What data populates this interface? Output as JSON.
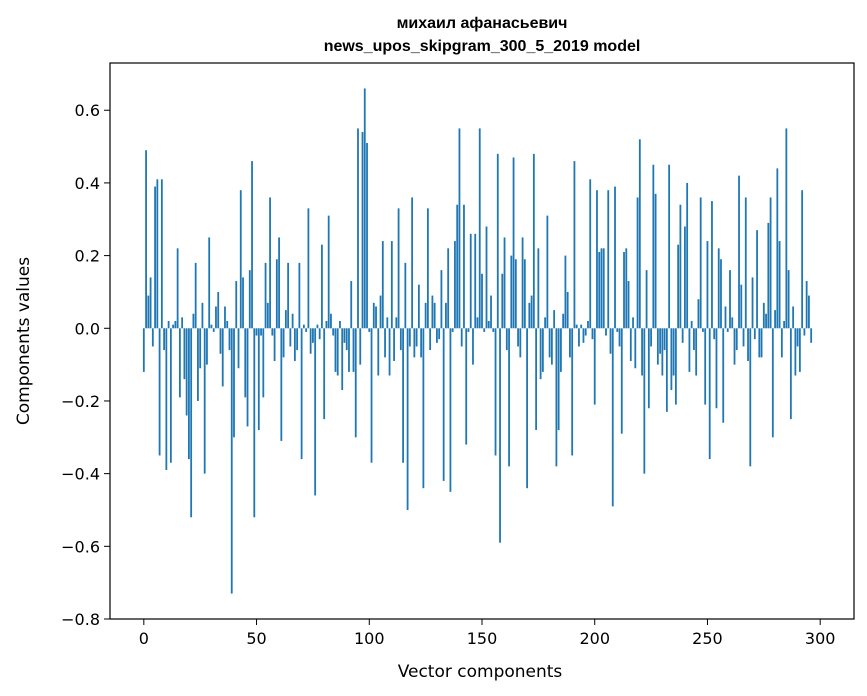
{
  "chart_data": {
    "type": "bar",
    "title": "михаил афанасьевич",
    "subtitle": "news_upos_skipgram_300_5_2019 model",
    "xlabel": "Vector components",
    "ylabel": "Components values",
    "xlim": [
      -15,
      315
    ],
    "ylim": [
      -0.8,
      0.73
    ],
    "xticks": [
      0,
      50,
      100,
      150,
      200,
      250,
      300
    ],
    "yticks": [
      -0.8,
      -0.6,
      -0.4,
      -0.2,
      0.0,
      0.2,
      0.4,
      0.6
    ],
    "ytick_labels": [
      "−0.8",
      "−0.6",
      "−0.4",
      "−0.2",
      "0.0",
      "0.2",
      "0.4",
      "0.6"
    ],
    "bar_color": "#1f77b4",
    "grid": false,
    "values": [
      -0.12,
      0.49,
      0.09,
      0.14,
      -0.05,
      0.39,
      0.41,
      -0.35,
      0.41,
      -0.06,
      -0.39,
      0.02,
      -0.37,
      0.01,
      0.02,
      0.22,
      -0.19,
      0.03,
      -0.14,
      -0.24,
      -0.36,
      -0.52,
      0.04,
      0.18,
      -0.2,
      -0.11,
      0.07,
      -0.4,
      -0.1,
      0.25,
      0.01,
      -0.01,
      0.06,
      0.1,
      -0.07,
      -0.16,
      0.06,
      0.02,
      -0.06,
      -0.73,
      -0.3,
      0.13,
      -0.11,
      0.38,
      0.14,
      -0.19,
      -0.27,
      0.16,
      0.46,
      -0.52,
      -0.02,
      -0.28,
      -0.02,
      -0.19,
      0.18,
      0.07,
      0.36,
      -0.02,
      -0.09,
      0.19,
      0.25,
      -0.31,
      -0.08,
      0.05,
      0.18,
      -0.05,
      0.04,
      -0.09,
      -0.06,
      0.18,
      -0.36,
      0.01,
      -0.01,
      0.33,
      -0.07,
      -0.04,
      -0.46,
      0.01,
      -0.03,
      0.23,
      -0.25,
      0.02,
      0.31,
      0.04,
      -0.02,
      -0.12,
      -0.13,
      0.02,
      -0.17,
      -0.04,
      -0.06,
      -0.12,
      0.13,
      -0.12,
      -0.3,
      0.55,
      -0.1,
      0.54,
      0.66,
      0.51,
      -0.01,
      -0.37,
      0.07,
      0.06,
      -0.13,
      0.09,
      0.24,
      -0.08,
      0.03,
      -0.13,
      0.24,
      -0.09,
      0.03,
      0.33,
      -0.06,
      -0.37,
      0.18,
      -0.5,
      -0.05,
      0.36,
      -0.08,
      -0.05,
      0.12,
      -0.08,
      -0.44,
      0.07,
      0.33,
      -0.06,
      0.09,
      0.07,
      -0.04,
      -0.03,
      0.16,
      -0.42,
      0.07,
      0.22,
      -0.45,
      -0.01,
      0.24,
      0.34,
      0.55,
      -0.05,
      0.34,
      -0.32,
      -0.01,
      0.26,
      -0.1,
      0.26,
      0.03,
      0.55,
      0.15,
      -0.01,
      0.28,
      0.02,
      0.09,
      -0.01,
      -0.35,
      0.48,
      -0.59,
      0.15,
      0.25,
      -0.06,
      -0.38,
      0.2,
      0.47,
      0.19,
      -0.05,
      -0.08,
      0.25,
      0.19,
      -0.44,
      0.07,
      0.09,
      0.48,
      -0.28,
      0.22,
      -0.14,
      -0.12,
      0.03,
      0.31,
      -0.08,
      -0.1,
      0.05,
      -0.38,
      -0.28,
      -0.12,
      0.04,
      0.2,
      0.1,
      -0.08,
      -0.35,
      0.46,
      0.01,
      -0.05,
      0.01,
      -0.04,
      -0.02,
      0.02,
      0.41,
      -0.03,
      -0.21,
      0.38,
      0.21,
      0.22,
      0.22,
      -0.02,
      0.38,
      -0.07,
      -0.49,
      0.39,
      -0.01,
      -0.05,
      -0.29,
      0.21,
      0.22,
      0.13,
      -0.09,
      0.03,
      -0.11,
      0.36,
      0.52,
      -0.13,
      -0.4,
      0.16,
      -0.22,
      -0.05,
      0.45,
      0.37,
      -0.1,
      -0.07,
      -0.13,
      -0.06,
      -0.23,
      0.45,
      -0.17,
      -0.13,
      -0.21,
      0.23,
      0.34,
      -0.04,
      0.28,
      0.4,
      -0.12,
      0.02,
      -0.06,
      -0.13,
      0.08,
      0.36,
      -0.01,
      -0.21,
      0.24,
      -0.36,
      0.35,
      -0.03,
      -0.22,
      0.22,
      0.19,
      -0.26,
      0.06,
      -0.01,
      0.16,
      0.03,
      -0.1,
      -0.06,
      0.42,
      0.12,
      -0.05,
      0.36,
      -0.09,
      -0.38,
      0.14,
      -0.03,
      0.27,
      -0.08,
      -0.08,
      0.07,
      0.04,
      0.29,
      0.36,
      -0.3,
      0.05,
      0.44,
      0.24,
      -0.08,
      0.02,
      0.55,
      0.16,
      -0.25,
      0.06,
      -0.13,
      -0.05,
      -0.12,
      0.38,
      -0.02,
      0.13,
      0.09,
      -0.04
    ]
  }
}
